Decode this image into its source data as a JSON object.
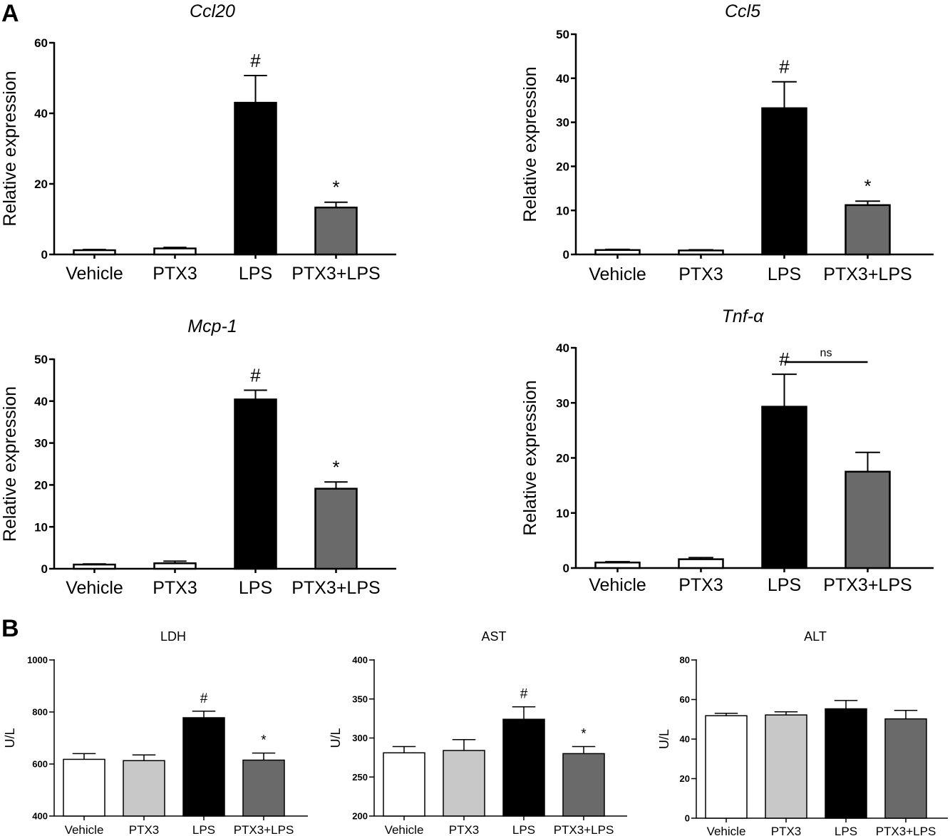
{
  "panels": [
    {
      "letter": "A"
    },
    {
      "letter": "B"
    }
  ],
  "chart_data": [
    {
      "type": "bar",
      "title": "Ccl20",
      "title_italic": true,
      "ylabel": "Relative expression",
      "categories": [
        "Vehicle",
        "PTX3",
        "LPS",
        "PTX3+LPS"
      ],
      "values": [
        1.2,
        1.7,
        43,
        13.3
      ],
      "errors": [
        0.2,
        0.3,
        7.7,
        1.5
      ],
      "ylim": [
        0,
        60
      ],
      "yticks": [
        "0",
        "20",
        "40",
        "60"
      ],
      "bar_colors": [
        "#ffffff",
        "#ffffff",
        "#000000",
        "#6a6a6a"
      ],
      "annotations": [
        "",
        "",
        "#",
        "*"
      ],
      "grid": false
    },
    {
      "type": "bar",
      "title": "Ccl5",
      "title_italic": true,
      "ylabel": "Relative expression",
      "categories": [
        "Vehicle",
        "PTX3",
        "LPS",
        "PTX3+LPS"
      ],
      "values": [
        1.0,
        0.9,
        33.2,
        11.2
      ],
      "errors": [
        0.15,
        0.15,
        6.0,
        0.9
      ],
      "ylim": [
        0,
        50
      ],
      "yticks": [
        "0",
        "10",
        "20",
        "30",
        "40",
        "50"
      ],
      "bar_colors": [
        "#ffffff",
        "#ffffff",
        "#000000",
        "#6a6a6a"
      ],
      "annotations": [
        "",
        "",
        "#",
        "*"
      ],
      "grid": false
    },
    {
      "type": "bar",
      "title": "Mcp-1",
      "title_italic": true,
      "ylabel": "Relative expression",
      "categories": [
        "Vehicle",
        "PTX3",
        "LPS",
        "PTX3+LPS"
      ],
      "values": [
        1.0,
        1.3,
        40.4,
        19.1
      ],
      "errors": [
        0.15,
        0.5,
        2.2,
        1.6
      ],
      "ylim": [
        0,
        50
      ],
      "yticks": [
        "0",
        "10",
        "20",
        "30",
        "40",
        "50"
      ],
      "bar_colors": [
        "#ffffff",
        "#ffffff",
        "#000000",
        "#6a6a6a"
      ],
      "annotations": [
        "",
        "",
        "#",
        "*"
      ],
      "grid": false
    },
    {
      "type": "bar",
      "title": "Tnf-α",
      "title_italic": true,
      "ylabel": "Relative expression",
      "categories": [
        "Vehicle",
        "PTX3",
        "LPS",
        "PTX3+LPS"
      ],
      "values": [
        1.0,
        1.6,
        29.3,
        17.5
      ],
      "errors": [
        0.15,
        0.3,
        5.9,
        3.5
      ],
      "ylim": [
        0,
        40
      ],
      "yticks": [
        "0",
        "10",
        "20",
        "30",
        "40"
      ],
      "bar_colors": [
        "#ffffff",
        "#ffffff",
        "#000000",
        "#6a6a6a"
      ],
      "annotations": [
        "",
        "",
        "#",
        ""
      ],
      "comparison": {
        "from": 2,
        "to": 3,
        "label": "ns"
      },
      "grid": false
    },
    {
      "type": "bar",
      "title": "LDH",
      "ylabel": "U/L",
      "categories": [
        "Vehicle",
        "PTX3",
        "LPS",
        "PTX3+LPS"
      ],
      "values": [
        618,
        613,
        778,
        615
      ],
      "errors": [
        22,
        22,
        25,
        27
      ],
      "ylim": [
        400,
        1000
      ],
      "yticks": [
        "400",
        "600",
        "800",
        "1000"
      ],
      "bar_colors": [
        "#ffffff",
        "#c8c8c8",
        "#000000",
        "#6a6a6a"
      ],
      "annotations": [
        "",
        "",
        "#",
        "*"
      ],
      "grid": false
    },
    {
      "type": "bar",
      "title": "AST",
      "ylabel": "U/L",
      "categories": [
        "Vehicle",
        "PTX3",
        "LPS",
        "PTX3+LPS"
      ],
      "values": [
        281,
        284,
        324,
        280
      ],
      "errors": [
        8,
        14,
        16,
        9
      ],
      "ylim": [
        200,
        400
      ],
      "yticks": [
        "200",
        "250",
        "300",
        "350",
        "400"
      ],
      "bar_colors": [
        "#ffffff",
        "#c8c8c8",
        "#000000",
        "#6a6a6a"
      ],
      "annotations": [
        "",
        "",
        "#",
        "*"
      ],
      "grid": false
    },
    {
      "type": "bar",
      "title": "ALT",
      "ylabel": "U/L",
      "categories": [
        "Vehicle",
        "PTX3",
        "LPS",
        "PTX3+LPS"
      ],
      "values": [
        51.8,
        52.2,
        55.3,
        50.2
      ],
      "errors": [
        1.2,
        1.6,
        4.2,
        4.3
      ],
      "ylim": [
        0,
        80
      ],
      "yticks": [
        "0",
        "20",
        "40",
        "60",
        "80"
      ],
      "bar_colors": [
        "#ffffff",
        "#c8c8c8",
        "#000000",
        "#6a6a6a"
      ],
      "annotations": [
        "",
        "",
        "",
        ""
      ],
      "grid": false
    }
  ]
}
